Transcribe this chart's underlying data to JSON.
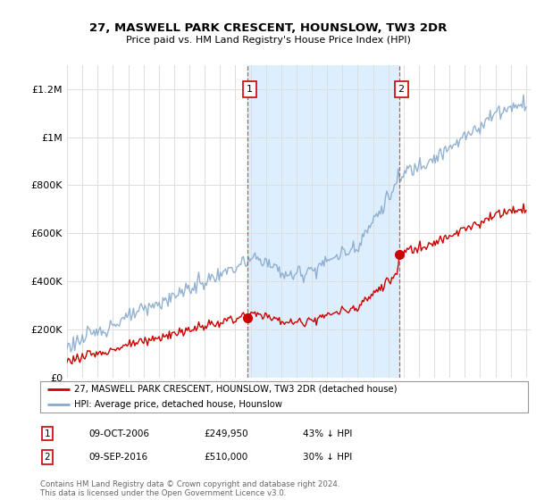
{
  "title": "27, MASWELL PARK CRESCENT, HOUNSLOW, TW3 2DR",
  "subtitle": "Price paid vs. HM Land Registry's House Price Index (HPI)",
  "legend_label_red": "27, MASWELL PARK CRESCENT, HOUNSLOW, TW3 2DR (detached house)",
  "legend_label_blue": "HPI: Average price, detached house, Hounslow",
  "annotation1_label": "1",
  "annotation1_date": "09-OCT-2006",
  "annotation1_price": "£249,950",
  "annotation1_hpi": "43% ↓ HPI",
  "annotation1_year": 2006.77,
  "annotation1_value": 249950,
  "annotation2_label": "2",
  "annotation2_date": "09-SEP-2016",
  "annotation2_price": "£510,000",
  "annotation2_hpi": "30% ↓ HPI",
  "annotation2_year": 2016.69,
  "annotation2_value": 510000,
  "footer": "Contains HM Land Registry data © Crown copyright and database right 2024.\nThis data is licensed under the Open Government Licence v3.0.",
  "ymin": 0,
  "ymax": 1300000,
  "yticks": [
    0,
    200000,
    400000,
    600000,
    800000,
    1000000,
    1200000
  ],
  "ytick_labels": [
    "£0",
    "£200K",
    "£400K",
    "£600K",
    "£800K",
    "£1M",
    "£1.2M"
  ],
  "background_color": "#ffffff",
  "plot_bg_color": "#ffffff",
  "shade_color": "#ddeeff",
  "red_color": "#cc0000",
  "blue_color": "#88aacc",
  "xmin": 1995,
  "xmax": 2025
}
